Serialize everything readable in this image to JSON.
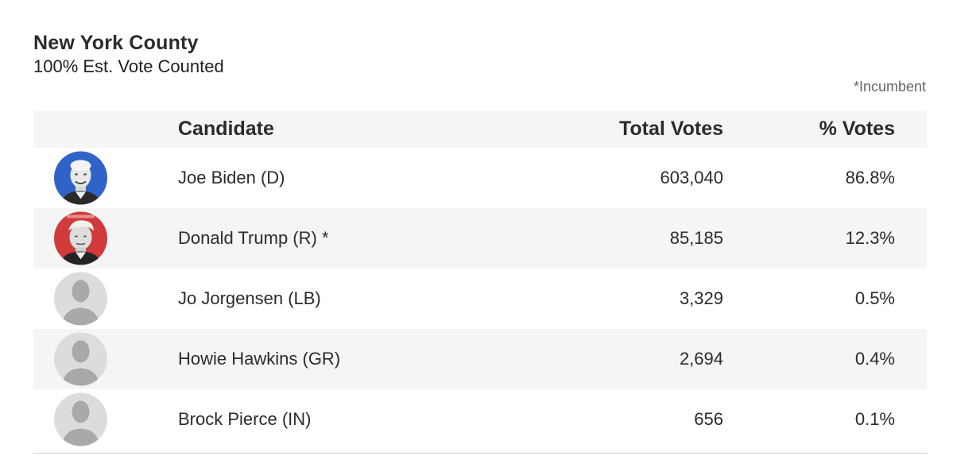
{
  "header": {
    "title": "New York County",
    "subtitle": "100% Est. Vote Counted",
    "incumbent_note": "*Incumbent"
  },
  "table": {
    "columns": {
      "candidate": "Candidate",
      "total_votes": "Total Votes",
      "pct_votes": "% Votes"
    },
    "rows": [
      {
        "name": "Joe Biden (D)",
        "votes": "603,040",
        "pct": "86.8%",
        "avatar": "photo-biden",
        "avatar_bg": "#2f63c8"
      },
      {
        "name": "Donald Trump (R) *",
        "votes": "85,185",
        "pct": "12.3%",
        "avatar": "photo-trump",
        "avatar_bg": "#d03a3a"
      },
      {
        "name": "Jo Jorgensen (LB)",
        "votes": "3,329",
        "pct": "0.5%",
        "avatar": "placeholder-person-icon",
        "avatar_bg": "#dcdcdc"
      },
      {
        "name": "Howie Hawkins (GR)",
        "votes": "2,694",
        "pct": "0.4%",
        "avatar": "placeholder-person-icon",
        "avatar_bg": "#dcdcdc"
      },
      {
        "name": "Brock Pierce (IN)",
        "votes": "656",
        "pct": "0.1%",
        "avatar": "placeholder-person-icon",
        "avatar_bg": "#dcdcdc"
      }
    ]
  }
}
